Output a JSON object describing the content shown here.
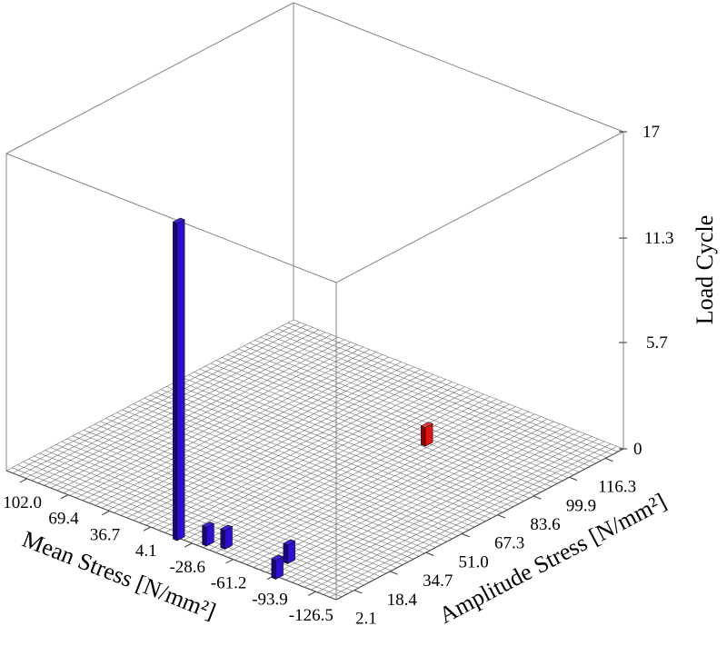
{
  "page": {
    "background": "#ffffff"
  },
  "chart_data": {
    "type": "bar",
    "subtype": "3d-bar-histogram",
    "title": "",
    "x_axis": {
      "label": "Mean Stress [N/mm²]",
      "tick_labels": [
        "102.0",
        "69.4",
        "36.7",
        "4.1",
        "-28.6",
        "-61.2",
        "-93.9",
        "-126.5"
      ],
      "tick_values": [
        102.0,
        69.4,
        36.7,
        4.1,
        -28.6,
        -61.2,
        -93.9,
        -126.5
      ],
      "range": [
        118.3,
        -142.8
      ]
    },
    "y_axis": {
      "label": "Amplitude Stress [N/mm²]",
      "tick_labels": [
        "2.1",
        "18.4",
        "34.7",
        "51.0",
        "67.3",
        "83.6",
        "99.9",
        "116.3"
      ],
      "tick_values": [
        2.1,
        18.4,
        34.7,
        51.0,
        67.3,
        83.6,
        99.9,
        116.3
      ],
      "range": [
        -6.1,
        124.5
      ]
    },
    "z_axis": {
      "label": "Load Cycle",
      "tick_labels": [
        "0",
        "5.7",
        "11.3",
        "17"
      ],
      "tick_values": [
        0,
        5.7,
        11.3,
        17
      ],
      "range": [
        0,
        17
      ]
    },
    "bars": [
      {
        "mean": -18,
        "amplitude": -6,
        "cycles": 17,
        "color": "blue"
      },
      {
        "mean": -36,
        "amplitude": -3,
        "cycles": 1,
        "color": "blue"
      },
      {
        "mean": -47,
        "amplitude": -1,
        "cycles": 1,
        "color": "blue"
      },
      {
        "mean": -88,
        "amplitude": 4,
        "cycles": 1,
        "color": "blue"
      },
      {
        "mean": -96,
        "amplitude": -6,
        "cycles": 1,
        "color": "blue"
      },
      {
        "mean": -49,
        "amplitude": 89,
        "cycles": 1,
        "color": "red"
      }
    ],
    "layout": {
      "grid": true,
      "grid_divisions": 52,
      "legend": false
    },
    "colors": {
      "blue_face": "#2c0ed6",
      "blue_side": "#19077a",
      "blue_top": "#3b1ede",
      "red_face": "#e31111",
      "red_side": "#8f0505",
      "red_top": "#f13c3c",
      "frame": "#848484",
      "axis": "#444444",
      "mesh": "#666666",
      "text": "#000000"
    }
  }
}
